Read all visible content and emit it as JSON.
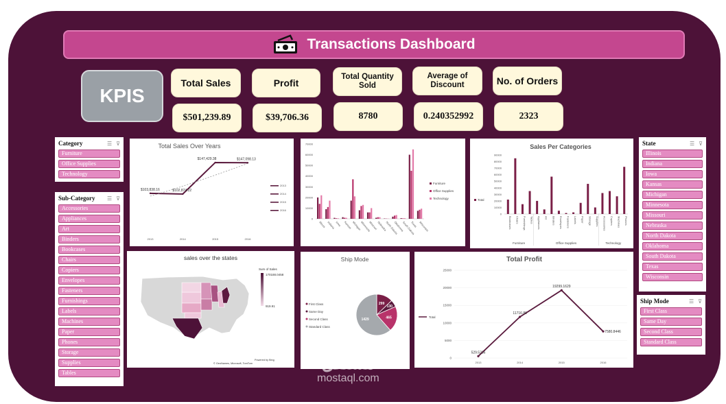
{
  "header": {
    "title": "Transactions Dashboard",
    "icon": "money-icon"
  },
  "kpis_label": "KPIS",
  "kpis": [
    {
      "label": "Total Sales",
      "value": "$501,239.89"
    },
    {
      "label": "Profit",
      "value": "$39,706.36"
    },
    {
      "label": "Total Quantity Sold",
      "value": "8780"
    },
    {
      "label": "Average of Discount",
      "value": "0.240352992"
    },
    {
      "label": "No. of Orders",
      "value": "2323"
    }
  ],
  "slicers": {
    "category": {
      "title": "Category",
      "items": [
        "Furniture",
        "Office Supplies",
        "Technology"
      ]
    },
    "sub_category": {
      "title": "Sub-Category",
      "items": [
        "Accessories",
        "Appliances",
        "Art",
        "Binders",
        "Bookcases",
        "Chairs",
        "Copiers",
        "Envelopes",
        "Fasteners",
        "Furnishings",
        "Labels",
        "Machines",
        "Paper",
        "Phones",
        "Storage",
        "Supplies",
        "Tables"
      ]
    },
    "state": {
      "title": "State",
      "items": [
        "Illinois",
        "Indiana",
        "Iowa",
        "Kansas",
        "Michigan",
        "Minnesota",
        "Missouri",
        "Nebraska",
        "North Dakota",
        "Oklahoma",
        "South Dakota",
        "Texas",
        "Wisconsin"
      ]
    },
    "ship_mode": {
      "title": "Ship Mode",
      "items": [
        "First Class",
        "Same Day",
        "Second Class",
        "Standard Class"
      ]
    }
  },
  "colors": {
    "frame": "#4d1238",
    "title_bar": "#c4478f",
    "slicer_item": "#e48bc2",
    "kpi_card": "#fff8dc",
    "kpis_box": "#9aa0a6",
    "line": "#5a1a3d",
    "furniture": "#7a1f47",
    "office": "#b8336a",
    "technology": "#e37aa8",
    "standard": "#a5a9ad"
  },
  "chart_data": [
    {
      "id": "sales_years",
      "type": "line",
      "title": "Total Sales Over Years",
      "x": [
        "2013",
        "2014",
        "2015",
        "2016"
      ],
      "values": [
        103838.16,
        102874.22,
        147429.38,
        147098.13
      ],
      "labels": [
        "$103,838.16",
        "$102,874.22",
        "$147,429.38",
        "$147,098.13"
      ],
      "legend": [
        "2013",
        "2014",
        "2015",
        "2016"
      ],
      "trendline": true
    },
    {
      "id": "state_sales",
      "type": "bar",
      "y_ticks": [
        "70000",
        "60000",
        "50000",
        "40000",
        "30000",
        "20000",
        "10000",
        "0"
      ],
      "ylim": [
        0,
        70000
      ],
      "categories": [
        "Illinois",
        "Indiana",
        "Iowa",
        "Kansas",
        "Michigan",
        "Minnesota",
        "Missouri",
        "Nebraska",
        "North Dakota",
        "Oklahoma",
        "South Dakota",
        "Texas",
        "Wisconsin"
      ],
      "series": [
        {
          "name": "Furniture",
          "values": [
            20000,
            9000,
            900,
            1500,
            17000,
            8000,
            6000,
            1000,
            300,
            2000,
            600,
            60000,
            7500
          ]
        },
        {
          "name": "Office Supplies",
          "values": [
            14000,
            11000,
            500,
            1000,
            37000,
            12000,
            6000,
            1500,
            200,
            3000,
            400,
            45000,
            8500
          ]
        },
        {
          "name": "Technology",
          "values": [
            22000,
            17000,
            500,
            900,
            21000,
            13000,
            10000,
            1500,
            200,
            3500,
            600,
            65000,
            9500
          ]
        }
      ],
      "legend": [
        "Furniture",
        "Office Supplies",
        "Technology"
      ]
    },
    {
      "id": "sales_categories",
      "type": "bar",
      "title": "Sales Per Categories",
      "y_ticks": [
        "90000",
        "80000",
        "70000",
        "60000",
        "50000",
        "40000",
        "30000",
        "20000",
        "10000",
        "0"
      ],
      "ylim": [
        0,
        90000
      ],
      "categories": [
        "Bookcases",
        "Chairs",
        "Furnishings",
        "Tables",
        "Appliances",
        "Art",
        "Binders",
        "Envelopes",
        "Fasteners",
        "Labels",
        "Paper",
        "Storage",
        "Supplies",
        "Accessories",
        "Copiers",
        "Machines",
        "Phones"
      ],
      "values": [
        22000,
        85000,
        15000,
        35000,
        20000,
        7000,
        57000,
        5000,
        1500,
        2500,
        17000,
        46000,
        10000,
        32000,
        35000,
        27000,
        72000
      ],
      "groups": [
        "Furniture",
        "Office Supplies",
        "Technology"
      ],
      "group_sizes": [
        4,
        9,
        4
      ],
      "legend": [
        "Total"
      ]
    },
    {
      "id": "ship_mode",
      "type": "pie",
      "title": "Ship Mode",
      "categories": [
        "First Class",
        "Same Day",
        "Second Class",
        "Standard Class"
      ],
      "values": [
        299,
        130,
        465,
        1429
      ],
      "labels": [
        "299",
        "130",
        "465",
        "1429"
      ]
    },
    {
      "id": "total_profit",
      "type": "line",
      "title": "Total Profit",
      "x": [
        "2013",
        "2014",
        "2015",
        "2016"
      ],
      "values": [
        529.5236,
        11716.8,
        19299.1629,
        7580.8446
      ],
      "labels": [
        "529.5236",
        "11716.80",
        "19299.1629",
        "7580.8446"
      ],
      "y_ticks": [
        "25000",
        "20000",
        "15000",
        "10000",
        "5000",
        "0"
      ],
      "ylim": [
        0,
        25000
      ],
      "legend": [
        "Total"
      ]
    }
  ],
  "map": {
    "title": "sales over the states",
    "legend_title": "Sum of Sales",
    "legend_max": "170188.0458",
    "legend_min": "919.91",
    "credit_1": "Powered by Bing",
    "credit_2": "© GeoNames, Microsoft, TomTom"
  },
  "watermark": {
    "arabic": "مستقل",
    "latin": "mostaql.com"
  }
}
